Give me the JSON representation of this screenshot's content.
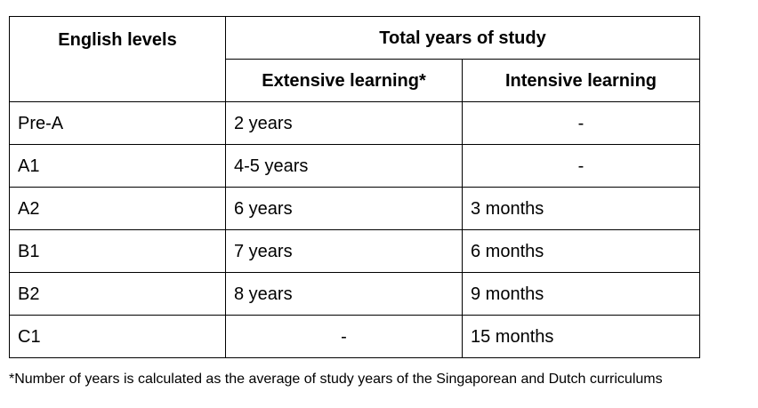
{
  "table": {
    "header": {
      "levels": "English levels",
      "total": "Total years of study",
      "extensive": "Extensive learning*",
      "intensive": "Intensive learning"
    },
    "rows": [
      {
        "level": "Pre-A",
        "extensive": "2 years",
        "intensive": "-"
      },
      {
        "level": "A1",
        "extensive": "4-5 years",
        "intensive": "-"
      },
      {
        "level": "A2",
        "extensive": "6 years",
        "intensive": "3 months"
      },
      {
        "level": "B1",
        "extensive": "7 years",
        "intensive": "6 months"
      },
      {
        "level": "B2",
        "extensive": "8 years",
        "intensive": "9 months"
      },
      {
        "level": "C1",
        "extensive": "-",
        "intensive": "15 months"
      }
    ]
  },
  "footnote": "*Number of years is calculated as the average of study years of the Singaporean and Dutch curriculums"
}
